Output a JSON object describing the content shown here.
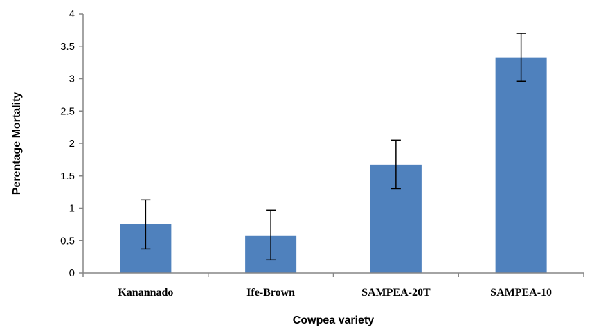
{
  "chart_data": {
    "type": "bar",
    "categories": [
      "Kanannado",
      "Ife-Brown",
      "SAMPEA-20T",
      "SAMPEA-10"
    ],
    "values": [
      0.75,
      0.58,
      1.67,
      3.33
    ],
    "error_bars": [
      [
        0.37,
        1.13
      ],
      [
        0.2,
        0.97
      ],
      [
        1.3,
        2.05
      ],
      [
        2.96,
        3.7
      ]
    ],
    "xlabel": "Cowpea variety",
    "ylabel": "Perentage Mortality",
    "ylim": [
      0,
      4
    ],
    "yticks": [
      "0",
      "0.5",
      "1",
      "1.5",
      "2",
      "2.5",
      "3",
      "3.5",
      "4"
    ],
    "grid": false,
    "legend": "none",
    "colors": {
      "bar": "#4f81bd",
      "axis": "#868686",
      "error_bar": "#000000"
    }
  }
}
